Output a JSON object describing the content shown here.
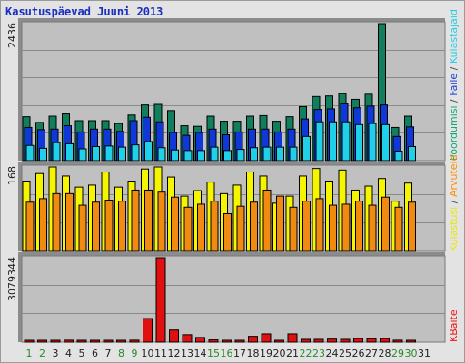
{
  "title": "Kasutuspäevad Juuni 2013",
  "panel_maxima": [
    "2436",
    "168",
    "3079344"
  ],
  "legend_panel1": [
    {
      "text": "Pöördumisi",
      "color": "#11a878"
    },
    {
      "text": " / ",
      "color": "#444444"
    },
    {
      "text": "Faile",
      "color": "#1a3ed8"
    },
    {
      "text": " / ",
      "color": "#444444"
    },
    {
      "text": "Külastajaid",
      "color": "#22cfe8"
    }
  ],
  "legend_panel2": [
    {
      "text": "Külastusi",
      "color": "#e8e800"
    },
    {
      "text": " / ",
      "color": "#444444"
    },
    {
      "text": "Arvuteid",
      "color": "#ff8c00"
    }
  ],
  "legend_panel3": [
    {
      "text": "KBaite",
      "color": "#ee1111"
    }
  ],
  "colors": {
    "hits": "#117f5e",
    "files": "#1038d8",
    "visitors": "#20d0e8",
    "visits": "#f5f500",
    "sites": "#f08a10",
    "kbytes": "#e01010",
    "weekday": "#222222",
    "weekend": "#2a8a2a"
  },
  "chart_data": [
    {
      "type": "bar",
      "ylim": [
        0,
        2436
      ],
      "categories": [
        "1",
        "2",
        "3",
        "4",
        "5",
        "6",
        "7",
        "8",
        "9",
        "10",
        "11",
        "12",
        "13",
        "14",
        "15",
        "16",
        "17",
        "18",
        "19",
        "20",
        "21",
        "22",
        "23",
        "24",
        "25",
        "26",
        "27",
        "28",
        "29",
        "30"
      ],
      "series": [
        {
          "name": "Pöördumisi",
          "values": [
            780,
            680,
            790,
            830,
            710,
            710,
            710,
            660,
            810,
            990,
            1000,
            890,
            620,
            610,
            790,
            700,
            700,
            790,
            800,
            700,
            780,
            960,
            1140,
            1150,
            1190,
            1090,
            1180,
            2436,
            590,
            790
          ]
        },
        {
          "name": "Faile",
          "values": [
            590,
            550,
            560,
            620,
            510,
            560,
            560,
            520,
            710,
            770,
            690,
            500,
            450,
            500,
            560,
            460,
            510,
            560,
            560,
            510,
            560,
            740,
            910,
            920,
            1010,
            940,
            970,
            990,
            430,
            600
          ]
        },
        {
          "name": "Külastajaid",
          "values": [
            270,
            220,
            320,
            300,
            210,
            250,
            260,
            240,
            280,
            340,
            230,
            190,
            180,
            180,
            240,
            180,
            200,
            230,
            240,
            240,
            240,
            430,
            690,
            690,
            690,
            640,
            660,
            640,
            170,
            250
          ]
        }
      ]
    },
    {
      "type": "bar",
      "ylim": [
        0,
        168
      ],
      "categories": [
        "1",
        "2",
        "3",
        "4",
        "5",
        "6",
        "7",
        "8",
        "9",
        "10",
        "11",
        "12",
        "13",
        "14",
        "15",
        "16",
        "17",
        "18",
        "19",
        "20",
        "21",
        "22",
        "23",
        "24",
        "25",
        "26",
        "27",
        "28",
        "29",
        "30"
      ],
      "series": [
        {
          "name": "Külastusi",
          "values": [
            140,
            155,
            168,
            150,
            128,
            132,
            158,
            128,
            140,
            164,
            168,
            148,
            110,
            121,
            138,
            115,
            132,
            158,
            150,
            96,
            110,
            150,
            165,
            140,
            162,
            122,
            130,
            145,
            100,
            136
          ]
        },
        {
          "name": "Arvuteid",
          "values": [
            98,
            105,
            115,
            115,
            92,
            98,
            102,
            100,
            122,
            122,
            118,
            108,
            88,
            94,
            100,
            75,
            90,
            98,
            122,
            110,
            88,
            100,
            105,
            92,
            94,
            100,
            92,
            108,
            88,
            98
          ]
        }
      ]
    },
    {
      "type": "bar",
      "ylim": [
        0,
        3079344
      ],
      "categories": [
        "1",
        "2",
        "3",
        "4",
        "5",
        "6",
        "7",
        "8",
        "9",
        "10",
        "11",
        "12",
        "13",
        "14",
        "15",
        "16",
        "17",
        "18",
        "19",
        "20",
        "21",
        "22",
        "23",
        "24",
        "25",
        "26",
        "27",
        "28",
        "29",
        "30"
      ],
      "series": [
        {
          "name": "KBaite",
          "values": [
            35000,
            35000,
            35000,
            70000,
            40000,
            40000,
            35000,
            40000,
            70000,
            860000,
            3079344,
            440000,
            270000,
            170000,
            80000,
            60000,
            60000,
            210000,
            300000,
            50000,
            300000,
            100000,
            100000,
            110000,
            100000,
            130000,
            120000,
            130000,
            70000,
            40000
          ]
        }
      ]
    }
  ],
  "day_labels": [
    {
      "text": "1",
      "weekend": true
    },
    {
      "text": "2",
      "weekend": true
    },
    {
      "text": "3",
      "weekend": false
    },
    {
      "text": "4",
      "weekend": false
    },
    {
      "text": "5",
      "weekend": false
    },
    {
      "text": "6",
      "weekend": false
    },
    {
      "text": "7",
      "weekend": false
    },
    {
      "text": "8",
      "weekend": true
    },
    {
      "text": "9",
      "weekend": true
    },
    {
      "text": "10",
      "weekend": false
    },
    {
      "text": "11",
      "weekend": false
    },
    {
      "text": "12",
      "weekend": false
    },
    {
      "text": "13",
      "weekend": false
    },
    {
      "text": "14",
      "weekend": false
    },
    {
      "text": "15",
      "weekend": true
    },
    {
      "text": "16",
      "weekend": true
    },
    {
      "text": "17",
      "weekend": false
    },
    {
      "text": "18",
      "weekend": false
    },
    {
      "text": "19",
      "weekend": false
    },
    {
      "text": "20",
      "weekend": false
    },
    {
      "text": "21",
      "weekend": false
    },
    {
      "text": "22",
      "weekend": true
    },
    {
      "text": "23",
      "weekend": true
    },
    {
      "text": "24",
      "weekend": false
    },
    {
      "text": "25",
      "weekend": false
    },
    {
      "text": "26",
      "weekend": false
    },
    {
      "text": "27",
      "weekend": false
    },
    {
      "text": "28",
      "weekend": false
    },
    {
      "text": "29",
      "weekend": true
    },
    {
      "text": "30",
      "weekend": true
    },
    {
      "text": "31",
      "weekend": false
    }
  ]
}
